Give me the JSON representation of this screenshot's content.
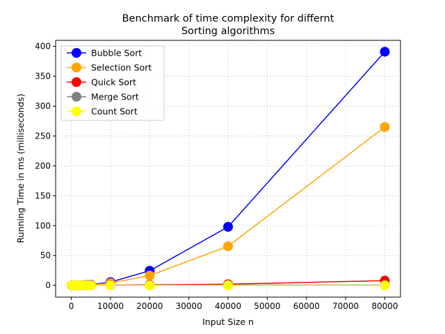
{
  "chart_data": {
    "type": "line",
    "title_line1": "Benchmark of time complexity for differnt",
    "title_line2": "Sorting algorithms",
    "xlabel": "Input Size n",
    "ylabel": "Running Time in ms (milliseconds)",
    "x": [
      100,
      1000,
      2000,
      3000,
      4000,
      5000,
      10000,
      20000,
      40000,
      80000
    ],
    "xlim": [
      -4000,
      84000
    ],
    "ylim": [
      -19.6,
      410
    ],
    "x_ticks": [
      0,
      10000,
      20000,
      30000,
      40000,
      50000,
      60000,
      70000,
      80000
    ],
    "x_tick_labels": [
      "0",
      "10000",
      "20000",
      "30000",
      "40000",
      "50000",
      "60000",
      "70000",
      "80000"
    ],
    "y_ticks": [
      0,
      50,
      100,
      150,
      200,
      250,
      300,
      350,
      400
    ],
    "y_tick_labels": [
      "0",
      "50",
      "100",
      "150",
      "200",
      "250",
      "300",
      "350",
      "400"
    ],
    "grid": true,
    "legend_position": "top-left",
    "series": [
      {
        "name": "Bubble Sort",
        "color": "#0000ff",
        "values": [
          0,
          0.1,
          0.2,
          0.4,
          0.8,
          1.2,
          5.5,
          24.5,
          98,
          391
        ]
      },
      {
        "name": "Selection Sort",
        "color": "#ffa500",
        "values": [
          0,
          0.1,
          0.2,
          0.3,
          0.5,
          0.8,
          3.8,
          16.5,
          65.5,
          265
        ]
      },
      {
        "name": "Quick Sort",
        "color": "#ff0000",
        "values": [
          0,
          0,
          0,
          0,
          0,
          0,
          0.5,
          1,
          2,
          8
        ]
      },
      {
        "name": "Merge Sort",
        "color": "#808080",
        "values": [
          0,
          0,
          0,
          0,
          0,
          0,
          0.2,
          0.4,
          0.8,
          0.5
        ]
      },
      {
        "name": "Count Sort",
        "color": "#ffff00",
        "values": [
          0,
          0,
          0,
          0,
          0,
          0,
          0,
          0,
          0,
          0
        ]
      }
    ]
  }
}
